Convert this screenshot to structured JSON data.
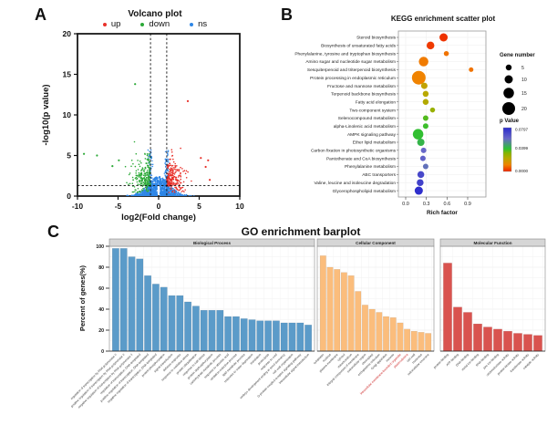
{
  "panels": {
    "a": "A",
    "b": "B",
    "c": "C"
  },
  "chart_data": [
    {
      "id": "volcano",
      "type": "scatter",
      "title": "Volcano plot",
      "xlabel": "log2(Fold change)",
      "ylabel": "-log10(p value)",
      "xlim": [
        -10,
        10
      ],
      "ylim": [
        0,
        20
      ],
      "xticks": [
        -10,
        -5,
        0,
        5,
        10
      ],
      "yticks": [
        0,
        5,
        10,
        15,
        20
      ],
      "grid": false,
      "threshold_lines": {
        "vertical_x": [
          -1,
          1
        ],
        "horizontal_y": 1.3
      },
      "legend": [
        {
          "label": "up",
          "color": "#e8312a"
        },
        {
          "label": "down",
          "color": "#2ca938"
        },
        {
          "label": "ns",
          "color": "#2e86e6"
        }
      ],
      "point_clusters": {
        "ns": {
          "color": "#2e86e6",
          "count": 1500,
          "x_sigma": 1.25,
          "y_envelope": 2.3,
          "column_count": 260,
          "column_height": 5.8
        },
        "down": {
          "color": "#2ca938",
          "count": 200,
          "x_range": [
            -4.6,
            -1.0
          ],
          "y_range": [
            1.25,
            8.6
          ]
        },
        "up": {
          "color": "#e8312a",
          "count": 200,
          "x_range": [
            1.0,
            6.4
          ],
          "y_range": [
            1.25,
            7.3
          ]
        },
        "down_outliers": [
          [
            -9.2,
            5.2
          ],
          [
            -7.6,
            5.0
          ],
          [
            -2.9,
            13.8
          ],
          [
            -5.7,
            3.7
          ],
          [
            -4.9,
            4.4
          ]
        ],
        "up_outliers": [
          [
            3.6,
            11.7
          ],
          [
            6.1,
            4.4
          ],
          [
            5.8,
            3.6
          ],
          [
            5.2,
            4.7
          ],
          [
            6.3,
            2.0
          ]
        ]
      }
    },
    {
      "id": "kegg",
      "type": "scatter",
      "title": "KEGG enrichment scatter plot",
      "xlabel": "Rich factor",
      "xticks": [
        "0.0",
        "0.3",
        "0.6",
        "0.9"
      ],
      "xtick_values": [
        0.0,
        0.3,
        0.6,
        0.9
      ],
      "xlim": [
        0.0,
        1.0
      ],
      "grid": true,
      "gene_legend": {
        "title": "Gene number",
        "sizes": [
          5,
          10,
          15,
          20
        ]
      },
      "pvalue_legend": {
        "title": "p Value",
        "ticks": [
          "0.0797",
          "0.0399",
          "0.0000"
        ],
        "max": 0.0797
      },
      "pathways": [
        {
          "name": "Steroid biosynthesis",
          "rich_factor": 0.55,
          "gene_number": 10,
          "p_value": 0.002
        },
        {
          "name": "Biosynthesis of unsaturated fatty acids",
          "rich_factor": 0.36,
          "gene_number": 9,
          "p_value": 0.003
        },
        {
          "name": "Phenylalanine, tyrosine and tryptophan biosynthesis",
          "rich_factor": 0.59,
          "gene_number": 3,
          "p_value": 0.01
        },
        {
          "name": "Amino sugar and nucleotide sugar metabolism",
          "rich_factor": 0.26,
          "gene_number": 13,
          "p_value": 0.011
        },
        {
          "name": "Sesquiterpenoid and triterpenoid biosynthesis",
          "rich_factor": 0.95,
          "gene_number": 2,
          "p_value": 0.01
        },
        {
          "name": "Protein processing in endoplasmic reticulum",
          "rich_factor": 0.19,
          "gene_number": 22,
          "p_value": 0.012
        },
        {
          "name": "Fructose and mannose metabolism",
          "rich_factor": 0.27,
          "gene_number": 6,
          "p_value": 0.022
        },
        {
          "name": "Terpenoid backbone biosynthesis",
          "rich_factor": 0.29,
          "gene_number": 5,
          "p_value": 0.024
        },
        {
          "name": "Fatty acid elongation",
          "rich_factor": 0.29,
          "gene_number": 5,
          "p_value": 0.025
        },
        {
          "name": "Two-component system",
          "rich_factor": 0.39,
          "gene_number": 3,
          "p_value": 0.03
        },
        {
          "name": "Selenocompound metabolism",
          "rich_factor": 0.29,
          "gene_number": 4,
          "p_value": 0.038
        },
        {
          "name": "alpha-Linolenic acid metabolism",
          "rich_factor": 0.29,
          "gene_number": 4,
          "p_value": 0.04
        },
        {
          "name": "AMPK signaling pathway",
          "rich_factor": 0.18,
          "gene_number": 15,
          "p_value": 0.041
        },
        {
          "name": "Ether lipid metabolism",
          "rich_factor": 0.22,
          "gene_number": 8,
          "p_value": 0.044
        },
        {
          "name": "Carbon fixation in photosynthetic organisms",
          "rich_factor": 0.26,
          "gene_number": 4,
          "p_value": 0.06
        },
        {
          "name": "Pantothenate and CoA biosynthesis",
          "rich_factor": 0.25,
          "gene_number": 4,
          "p_value": 0.062
        },
        {
          "name": "Phenylalanine metabolism",
          "rich_factor": 0.29,
          "gene_number": 4,
          "p_value": 0.058
        },
        {
          "name": "ABC transporters",
          "rich_factor": 0.22,
          "gene_number": 7,
          "p_value": 0.07
        },
        {
          "name": "Valine, leucine and isoleucine degradation",
          "rich_factor": 0.21,
          "gene_number": 7,
          "p_value": 0.072
        },
        {
          "name": "Glycerophospholipid metabolism",
          "rich_factor": 0.19,
          "gene_number": 10,
          "p_value": 0.078
        }
      ]
    },
    {
      "id": "go",
      "type": "bar",
      "title": "GO enrichment barplot",
      "ylabel": "Percent of genes(%)",
      "ylim": [
        0,
        100
      ],
      "yticks": [
        0,
        20,
        40,
        60,
        80,
        100
      ],
      "grid": true,
      "highlight_color": "#cc2222",
      "facets": [
        {
          "label": "Biological Process",
          "color": "#5b9bc9",
          "bars": [
            {
              "term": "regulation of transcription by RNA polymerase II",
              "value": 98
            },
            {
              "term": "positive regulation of transcription by RNA polymerase II",
              "value": 98
            },
            {
              "term": "negative regulation of transcription by RNA polymerase II",
              "value": 90
            },
            {
              "term": "regulation of transcription, DNA-templated",
              "value": 88
            },
            {
              "term": "positive regulation of transcription, DNA-templated",
              "value": 72
            },
            {
              "term": "negative regulation of transcription, DNA-templated",
              "value": 64
            },
            {
              "term": "protein phosphorylation",
              "value": 61
            },
            {
              "term": "signal transduction",
              "value": 53
            },
            {
              "term": "defense response",
              "value": 53
            },
            {
              "term": "response to oxidative stress",
              "value": 47
            },
            {
              "term": "protein ubiquitination",
              "value": 43
            },
            {
              "term": "response to salt stress",
              "value": 39
            },
            {
              "term": "protein dephosphorylation",
              "value": 39
            },
            {
              "term": "carbohydrate metabolic process",
              "value": 39
            },
            {
              "term": "response to abscisic acid",
              "value": 33
            },
            {
              "term": "oxidation-reduction process",
              "value": 33
            },
            {
              "term": "lipid metabolic process",
              "value": 31
            },
            {
              "term": "response to water deprivation",
              "value": 30
            },
            {
              "term": "translation",
              "value": 29
            },
            {
              "term": "proteolysis",
              "value": 29
            },
            {
              "term": "response to cold",
              "value": 29
            },
            {
              "term": "embryo development ending in seed dormancy",
              "value": 27
            },
            {
              "term": "cell wall organization",
              "value": 27
            },
            {
              "term": "G protein-coupled receptor signaling pathway",
              "value": 27
            },
            {
              "term": "intracellular signal transduction",
              "value": 25
            }
          ]
        },
        {
          "label": "Cellular Component",
          "color": "#fbbd7c",
          "bars": [
            {
              "term": "cytoplasm",
              "value": 91
            },
            {
              "term": "nucleus",
              "value": 80
            },
            {
              "term": "plasma membrane",
              "value": 78
            },
            {
              "term": "cytosol",
              "value": 75
            },
            {
              "term": "mitochondrion",
              "value": 72
            },
            {
              "term": "integral component of membrane",
              "value": 57
            },
            {
              "term": "extracellular region",
              "value": 44
            },
            {
              "term": "chloroplast",
              "value": 40
            },
            {
              "term": "endoplasmic reticulum",
              "value": 37
            },
            {
              "term": "Golgi apparatus",
              "value": 33
            },
            {
              "term": "vacuole",
              "value": 32
            },
            {
              "term": "intracellular membrane-bounded organelle",
              "value": 27,
              "highlight": true
            },
            {
              "term": "plasmodesma",
              "value": 21,
              "highlight": true
            },
            {
              "term": "cell wall",
              "value": 19
            },
            {
              "term": "nucleolus",
              "value": 18
            },
            {
              "term": "extracellular exosome",
              "value": 17
            }
          ]
        },
        {
          "label": "Molecular Function",
          "color": "#d9534f",
          "bars": [
            {
              "term": "protein binding",
              "value": 84
            },
            {
              "term": "ATP binding",
              "value": 42
            },
            {
              "term": "DNA binding",
              "value": 37
            },
            {
              "term": "metal ion binding",
              "value": 26
            },
            {
              "term": "RNA binding",
              "value": 23
            },
            {
              "term": "zinc ion binding",
              "value": 21
            },
            {
              "term": "oxidoreductase activity",
              "value": 19
            },
            {
              "term": "protein kinase activity",
              "value": 17
            },
            {
              "term": "transferase activity",
              "value": 16
            },
            {
              "term": "catalytic activity",
              "value": 15
            }
          ]
        }
      ]
    }
  ]
}
